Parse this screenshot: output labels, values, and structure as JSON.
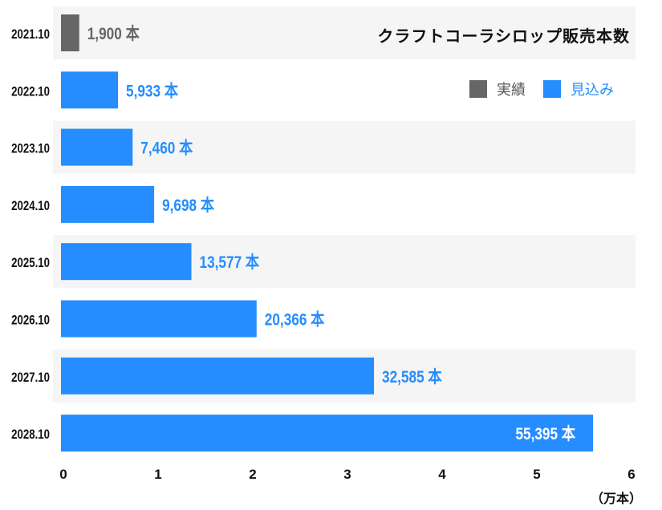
{
  "chart_data": {
    "type": "bar",
    "orientation": "horizontal",
    "title": "クラフトコーラシロップ販売本数",
    "categories": [
      "2021.10",
      "2022.10",
      "2023.10",
      "2024.10",
      "2025.10",
      "2026.10",
      "2027.10",
      "2028.10"
    ],
    "values": [
      1900,
      5933,
      7460,
      9698,
      13577,
      20366,
      32585,
      55395
    ],
    "series_type": [
      "actual",
      "forecast",
      "forecast",
      "forecast",
      "forecast",
      "forecast",
      "forecast",
      "forecast"
    ],
    "data_labels": [
      "1,900 本",
      "5,933 本",
      "7,460 本",
      "9,698 本",
      "13,577 本",
      "20,366 本",
      "32,585 本",
      "55,395 本"
    ],
    "legend": [
      {
        "name": "実績",
        "color": "#666666"
      },
      {
        "name": "見込み",
        "color": "#258dff"
      }
    ],
    "legend_position": "top-right",
    "x_ticks": [
      "0",
      "1",
      "2",
      "3",
      "4",
      "5",
      "6"
    ],
    "xlabel": "（万本）",
    "xlim": [
      0,
      60000
    ],
    "x_unit_divisor": 10000,
    "grid": false,
    "row_band_color": "#f5f5f5"
  }
}
